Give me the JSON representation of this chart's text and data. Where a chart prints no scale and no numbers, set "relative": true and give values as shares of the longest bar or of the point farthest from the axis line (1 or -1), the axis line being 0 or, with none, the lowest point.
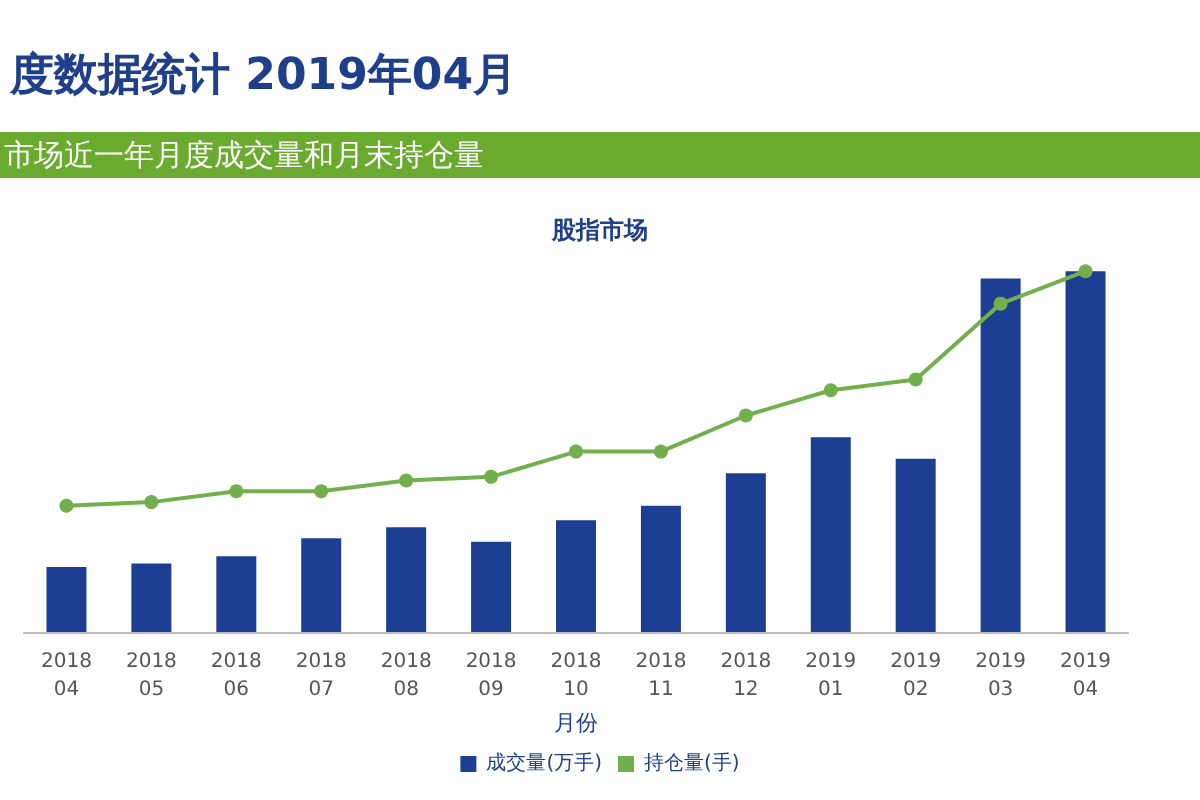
{
  "chart_data": {
    "type": "bar",
    "title": "度数据统计 2019年04月",
    "subtitle": "市场近一年月度成交量和月末持仓量",
    "annotations": [
      "股指市场"
    ],
    "xlabel": "月份",
    "categories": [
      "2018\n04",
      "2018\n05",
      "2018\n06",
      "2018\n07",
      "2018\n08",
      "2018\n09",
      "2018\n10",
      "2018\n11",
      "2018\n12",
      "2019\n01",
      "2019\n02",
      "2019\n03",
      "2019\n04"
    ],
    "relative": true,
    "grid": false,
    "legend": "bottom",
    "marker": "circle",
    "series": [
      {
        "name": "成交量(万手)",
        "color": "#1c3f94",
        "values": [
          0.18,
          0.19,
          0.21,
          0.26,
          0.29,
          0.25,
          0.31,
          0.35,
          0.44,
          0.54,
          0.48,
          0.98,
          1
        ]
      },
      {
        "name": "持仓量(手)",
        "type": "line",
        "color": "#72b04e",
        "values": [
          0.35,
          0.36,
          0.39,
          0.39,
          0.42,
          0.43,
          0.5,
          0.5,
          0.6,
          0.67,
          0.7,
          0.91,
          1
        ]
      }
    ]
  }
}
